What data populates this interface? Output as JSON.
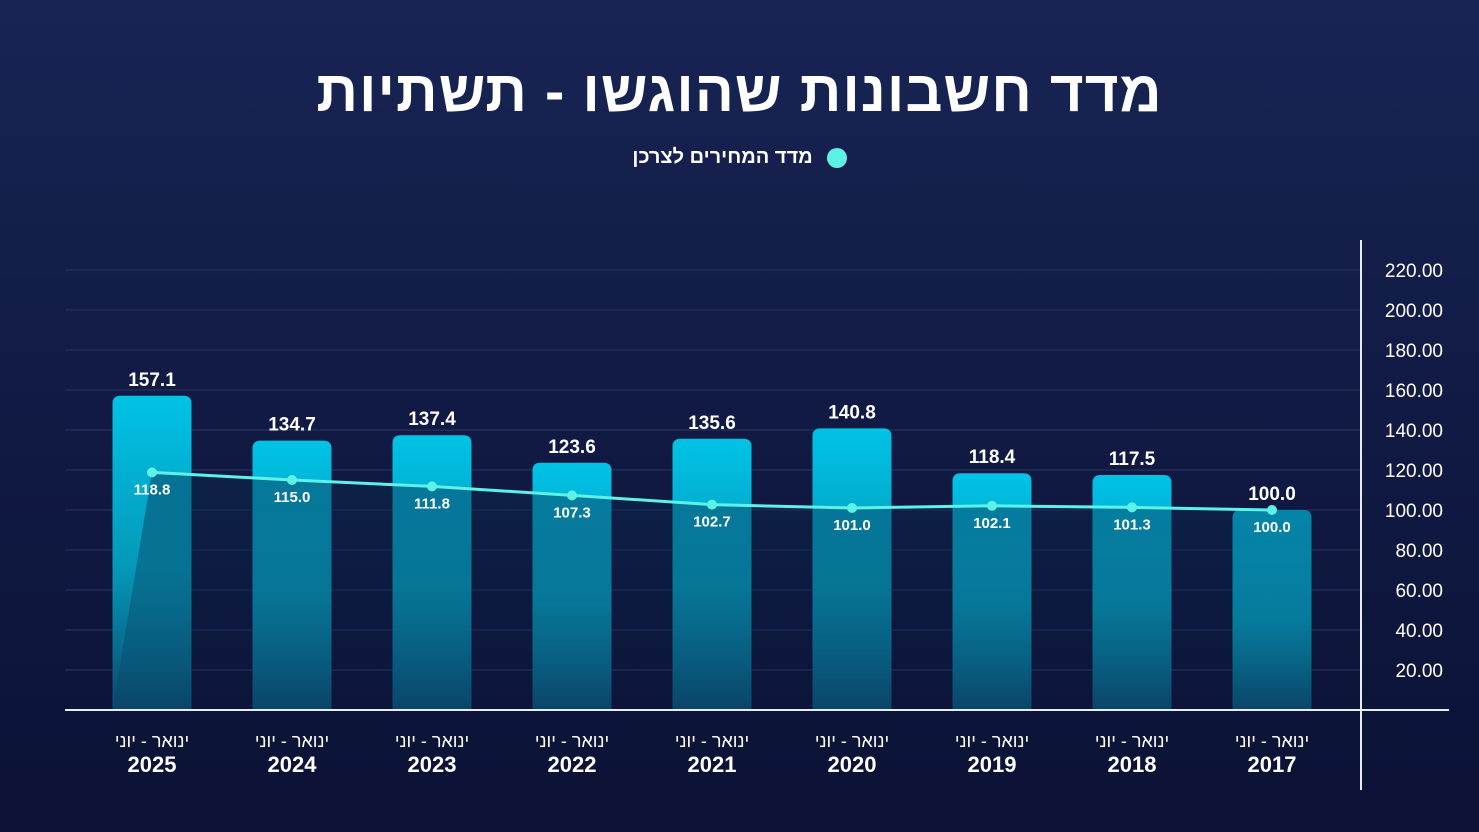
{
  "title": "מדד חשבונות שהוגשו - תשתיות",
  "legend": {
    "label": "מדד המחירים לצרכן",
    "color": "#5ef2e6"
  },
  "chart_data": {
    "type": "bar",
    "categories": [
      {
        "period": "ינואר - יוני",
        "year": "2025"
      },
      {
        "period": "ינואר - יוני",
        "year": "2024"
      },
      {
        "period": "ינואר - יוני",
        "year": "2023"
      },
      {
        "period": "ינואר - יוני",
        "year": "2022"
      },
      {
        "period": "ינואר - יוני",
        "year": "2021"
      },
      {
        "period": "ינואר - יוני",
        "year": "2020"
      },
      {
        "period": "ינואר - יוני",
        "year": "2019"
      },
      {
        "period": "ינואר - יוני",
        "year": "2018"
      },
      {
        "period": "ינואר - יוני",
        "year": "2017"
      }
    ],
    "series": [
      {
        "kind": "bar",
        "values": [
          157.1,
          134.7,
          137.4,
          123.6,
          135.6,
          140.8,
          118.4,
          117.5,
          100.0
        ],
        "labels": [
          "157.1",
          "134.7",
          "137.4",
          "123.6",
          "135.6",
          "140.8",
          "118.4",
          "117.5",
          "100.0"
        ],
        "color": "#00bde0"
      },
      {
        "name": "מדד המחירים לצרכן",
        "kind": "line",
        "values": [
          118.8,
          115.0,
          111.8,
          107.3,
          102.7,
          101.0,
          102.1,
          101.3,
          100.0
        ],
        "labels": [
          "118.8",
          "115.0",
          "111.8",
          "107.3",
          "102.7",
          "101.0",
          "102.1",
          "101.3",
          "100.0"
        ],
        "color": "#5ef2e6"
      }
    ],
    "y_axis": {
      "position": "right",
      "ylim": [
        0,
        220
      ],
      "ticks": [
        20,
        40,
        60,
        80,
        100,
        120,
        140,
        160,
        180,
        200,
        220
      ],
      "tick_labels": [
        "20.00",
        "40.00",
        "60.00",
        "80.00",
        "100.00",
        "120.00",
        "140.00",
        "160.00",
        "180.00",
        "200.00",
        "220.00"
      ]
    },
    "grid": true,
    "legend_position": "top-center"
  }
}
